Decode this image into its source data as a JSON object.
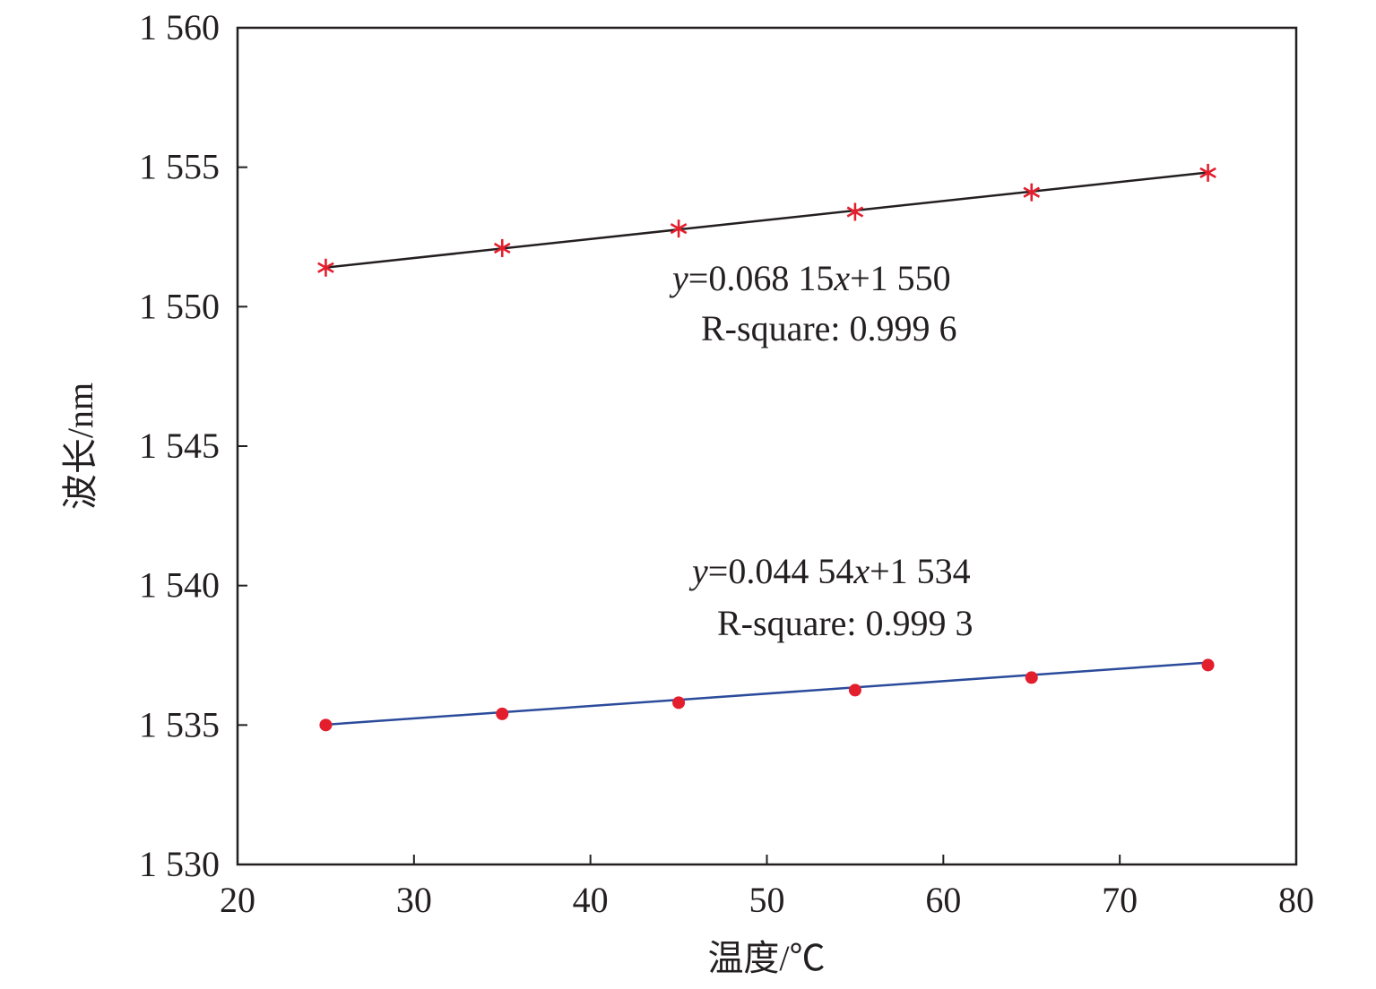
{
  "chart_data": {
    "type": "line",
    "xlabel": "温度/℃",
    "ylabel": "波长/nm",
    "xlim": [
      20,
      80
    ],
    "ylim": [
      1530,
      1560
    ],
    "xticks": [
      20,
      30,
      40,
      50,
      60,
      70,
      80
    ],
    "yticks": [
      1530,
      1535,
      1540,
      1545,
      1550,
      1555,
      1560
    ],
    "x_tick_labels": [
      "20",
      "30",
      "40",
      "50",
      "60",
      "70",
      "80"
    ],
    "y_tick_labels": [
      "1 530",
      "1 535",
      "1 540",
      "1 545",
      "1 550",
      "1 555",
      "1 560"
    ],
    "grid": false,
    "series": [
      {
        "marker": "asterisk",
        "marker_color": "#e31e2d",
        "line_color": "#231f20",
        "x": [
          25,
          35,
          45,
          55,
          65,
          75
        ],
        "y": [
          1551.4,
          1552.1,
          1552.8,
          1553.4,
          1554.1,
          1554.8
        ],
        "fit": {
          "slope": 0.06815,
          "intercept": 1549.7
        }
      },
      {
        "marker": "dot",
        "marker_color": "#e31e2d",
        "line_color": "#2b4b9b",
        "x": [
          25,
          35,
          45,
          55,
          65,
          75
        ],
        "y": [
          1535.0,
          1535.4,
          1535.8,
          1536.25,
          1536.7,
          1537.15
        ],
        "fit": {
          "slope": 0.04454,
          "intercept": 1533.9
        }
      }
    ],
    "annotations": [
      {
        "var_y": "y",
        "rest1": "=0.068 15",
        "var_x": "x",
        "rest2": "+1 550",
        "r2": "R-square: 0.999 6"
      },
      {
        "var_y": "y",
        "rest1": "=0.044 54",
        "var_x": "x",
        "rest2": "+1 534",
        "r2": "R-square: 0.999 3"
      }
    ]
  }
}
